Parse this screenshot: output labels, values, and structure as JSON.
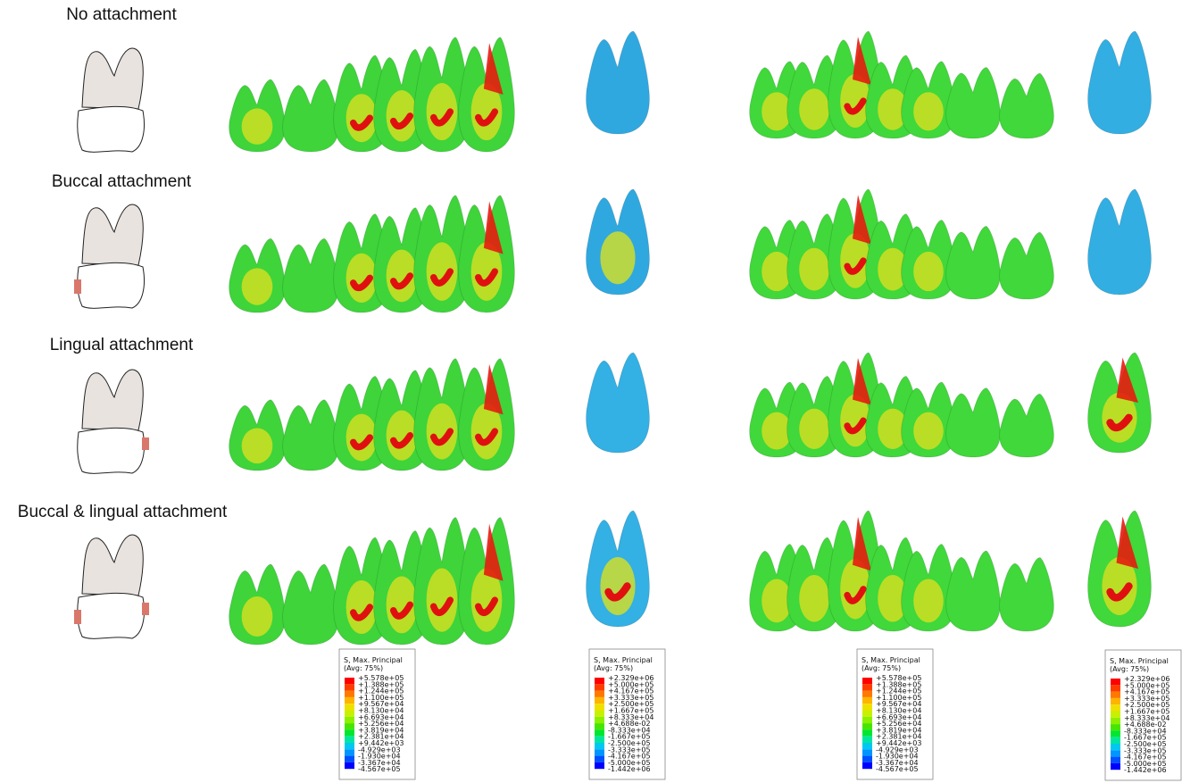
{
  "rows": [
    {
      "label": "No attachment"
    },
    {
      "label": "Buccal attachment"
    },
    {
      "label": "Lingual attachment"
    },
    {
      "label": "Buccal & lingual attachment"
    }
  ],
  "legends": [
    {
      "title": "S, Max. Principal",
      "subtitle": "(Avg: 75%)",
      "values": [
        "+5.578e+05",
        "+1.388e+05",
        "+1.244e+05",
        "+1.100e+05",
        "+9.567e+04",
        "+8.130e+04",
        "+6.693e+04",
        "+5.256e+04",
        "+3.819e+04",
        "+2.381e+04",
        "+9.442e+03",
        "-4.929e+03",
        "-1.930e+04",
        "-3.367e+04",
        "-4.567e+05"
      ]
    },
    {
      "title": "S, Max. Principal",
      "subtitle": "(Avg: 75%)",
      "values": [
        "+2.329e+06",
        "+5.000e+05",
        "+4.167e+05",
        "+3.333e+05",
        "+2.500e+05",
        "+1.667e+05",
        "+8.333e+04",
        "+4.688e-02",
        "-8.333e+04",
        "-1.667e+05",
        "-2.500e+05",
        "-3.333e+05",
        "-4.167e+05",
        "-5.000e+05",
        "-1.442e+06"
      ]
    },
    {
      "title": "S, Max. Principal",
      "subtitle": "(Avg: 75%)",
      "values": [
        "+5.578e+05",
        "+1.388e+05",
        "+1.244e+05",
        "+1.100e+05",
        "+9.567e+04",
        "+8.130e+04",
        "+6.693e+04",
        "+5.256e+04",
        "+3.819e+04",
        "+2.381e+04",
        "+9.442e+03",
        "-4.929e+03",
        "-1.930e+04",
        "-3.367e+04",
        "-4.567e+05"
      ]
    },
    {
      "title": "S, Max. Principal",
      "subtitle": "(Avg: 75%)",
      "values": [
        "+2.329e+06",
        "+5.000e+05",
        "+4.167e+05",
        "+3.333e+05",
        "+2.500e+05",
        "+1.667e+05",
        "+8.333e+04",
        "+4.688e-02",
        "-8.333e+04",
        "-1.667e+05",
        "-2.500e+05",
        "-3.333e+05",
        "-4.167e+05",
        "-5.000e+05",
        "-1.442e+06"
      ]
    }
  ]
}
